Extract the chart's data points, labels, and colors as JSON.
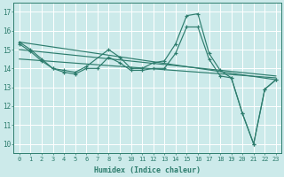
{
  "xlabel": "Humidex (Indice chaleur)",
  "bg_color": "#cceaea",
  "grid_color": "#ffffff",
  "line_color": "#2e7d6e",
  "xlim": [
    -0.5,
    23.5
  ],
  "ylim": [
    9.5,
    17.5
  ],
  "xticks": [
    0,
    1,
    2,
    3,
    4,
    5,
    6,
    7,
    8,
    9,
    10,
    11,
    12,
    13,
    14,
    15,
    16,
    17,
    18,
    19,
    20,
    21,
    22,
    23
  ],
  "yticks": [
    10,
    11,
    12,
    13,
    14,
    15,
    16,
    17
  ],
  "wavy_series": [
    [
      15.4,
      15.0,
      14.5,
      14.0,
      13.9,
      13.8,
      14.1,
      15.0,
      14.6,
      14.0,
      14.0,
      14.3,
      14.4,
      15.3,
      16.8,
      16.9,
      14.8,
      13.9,
      13.5,
      11.6,
      10.0,
      12.9,
      13.4
    ],
    [
      15.3,
      14.9,
      14.4,
      14.0,
      13.8,
      13.7,
      14.0,
      14.0,
      14.6,
      14.3,
      13.9,
      13.9,
      14.0,
      14.0,
      14.8,
      16.2,
      16.2,
      14.5,
      13.6,
      13.5,
      11.6,
      10.0,
      12.9,
      13.4
    ]
  ],
  "wavy_x": [
    [
      0,
      1,
      2,
      3,
      4,
      5,
      6,
      8,
      9,
      10,
      11,
      12,
      13,
      14,
      15,
      16,
      17,
      18,
      19,
      20,
      21,
      22,
      23
    ],
    [
      0,
      1,
      2,
      3,
      4,
      5,
      6,
      7,
      8,
      9,
      10,
      11,
      12,
      13,
      14,
      15,
      16,
      17,
      18,
      19,
      20,
      21,
      22,
      23
    ]
  ],
  "trend_lines": [
    {
      "x": [
        0,
        23
      ],
      "y": [
        15.4,
        13.4
      ]
    },
    {
      "x": [
        0,
        23
      ],
      "y": [
        15.0,
        13.6
      ]
    },
    {
      "x": [
        0,
        23
      ],
      "y": [
        14.5,
        13.5
      ]
    }
  ]
}
